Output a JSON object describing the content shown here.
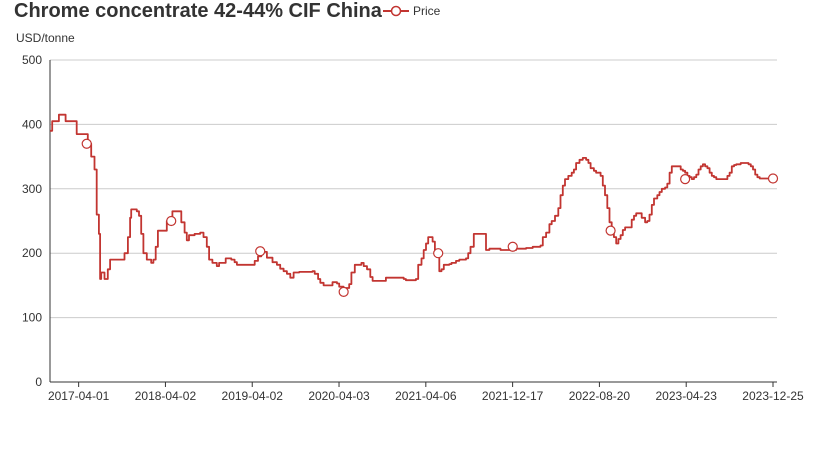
{
  "title": "Chrome concentrate 42-44% CIF China",
  "legend_label": "Price",
  "y_unit": "USD/tonne",
  "colors": {
    "series": "#c23531",
    "grid": "#cccccc",
    "axis": "#333333",
    "text": "#333333"
  },
  "chart_data": {
    "type": "line",
    "title": "Chrome concentrate 42-44% CIF China",
    "ylabel": "USD/tonne",
    "xlabel": "",
    "ylim": [
      0,
      500
    ],
    "y_ticks": [
      0,
      100,
      200,
      300,
      400,
      500
    ],
    "x_tick_labels": [
      "2017-04-01",
      "2018-04-02",
      "2019-04-02",
      "2020-04-03",
      "2021-04-06",
      "2021-12-17",
      "2022-08-20",
      "2023-04-23",
      "2023-12-25"
    ],
    "legend_position": "top",
    "grid": true,
    "series": [
      {
        "name": "Price",
        "step": true,
        "points": [
          [
            0,
            390
          ],
          [
            2,
            405
          ],
          [
            6,
            405
          ],
          [
            8,
            415
          ],
          [
            12,
            415
          ],
          [
            14,
            405
          ],
          [
            22,
            405
          ],
          [
            24,
            385
          ],
          [
            32,
            385
          ],
          [
            34,
            370
          ],
          [
            37,
            350
          ],
          [
            40,
            330
          ],
          [
            42,
            260
          ],
          [
            44,
            230
          ],
          [
            45,
            160
          ],
          [
            46,
            170
          ],
          [
            49,
            160
          ],
          [
            52,
            175
          ],
          [
            54,
            190
          ],
          [
            65,
            190
          ],
          [
            67,
            200
          ],
          [
            70,
            225
          ],
          [
            72,
            255
          ],
          [
            73,
            268
          ],
          [
            78,
            265
          ],
          [
            80,
            258
          ],
          [
            82,
            230
          ],
          [
            84,
            200
          ],
          [
            87,
            190
          ],
          [
            91,
            185
          ],
          [
            93,
            190
          ],
          [
            95,
            210
          ],
          [
            97,
            235
          ],
          [
            103,
            235
          ],
          [
            105,
            250
          ],
          [
            107,
            255
          ],
          [
            110,
            265
          ],
          [
            116,
            265
          ],
          [
            118,
            248
          ],
          [
            121,
            232
          ],
          [
            123,
            220
          ],
          [
            125,
            228
          ],
          [
            130,
            230
          ],
          [
            135,
            232
          ],
          [
            138,
            225
          ],
          [
            141,
            210
          ],
          [
            143,
            190
          ],
          [
            146,
            185
          ],
          [
            150,
            180
          ],
          [
            152,
            185
          ],
          [
            156,
            185
          ],
          [
            158,
            192
          ],
          [
            163,
            190
          ],
          [
            166,
            186
          ],
          [
            168,
            182
          ],
          [
            180,
            182
          ],
          [
            184,
            188
          ],
          [
            187,
            195
          ],
          [
            190,
            200
          ],
          [
            192,
            202
          ],
          [
            195,
            193
          ],
          [
            200,
            186
          ],
          [
            204,
            182
          ],
          [
            207,
            176
          ],
          [
            210,
            172
          ],
          [
            213,
            168
          ],
          [
            216,
            162
          ],
          [
            219,
            170
          ],
          [
            224,
            171
          ],
          [
            236,
            172
          ],
          [
            238,
            168
          ],
          [
            241,
            160
          ],
          [
            243,
            154
          ],
          [
            246,
            150
          ],
          [
            252,
            150
          ],
          [
            254,
            155
          ],
          [
            258,
            153
          ],
          [
            260,
            148
          ],
          [
            264,
            140
          ],
          [
            266,
            146
          ],
          [
            269,
            152
          ],
          [
            271,
            170
          ],
          [
            274,
            182
          ],
          [
            280,
            185
          ],
          [
            282,
            180
          ],
          [
            285,
            175
          ],
          [
            288,
            163
          ],
          [
            290,
            157
          ],
          [
            298,
            157
          ],
          [
            302,
            162
          ],
          [
            318,
            160
          ],
          [
            320,
            158
          ],
          [
            329,
            160
          ],
          [
            331,
            182
          ],
          [
            334,
            192
          ],
          [
            336,
            205
          ],
          [
            338,
            215
          ],
          [
            340,
            225
          ],
          [
            344,
            218
          ],
          [
            346,
            205
          ],
          [
            348,
            200
          ],
          [
            350,
            172
          ],
          [
            352,
            175
          ],
          [
            354,
            182
          ],
          [
            359,
            183
          ],
          [
            361,
            185
          ],
          [
            365,
            188
          ],
          [
            368,
            190
          ],
          [
            374,
            192
          ],
          [
            376,
            200
          ],
          [
            378,
            210
          ],
          [
            381,
            230
          ],
          [
            390,
            230
          ],
          [
            392,
            205
          ],
          [
            395,
            207
          ],
          [
            403,
            207
          ],
          [
            405,
            205
          ],
          [
            414,
            205
          ],
          [
            419,
            207
          ],
          [
            428,
            208
          ],
          [
            434,
            210
          ],
          [
            441,
            212
          ],
          [
            443,
            225
          ],
          [
            446,
            232
          ],
          [
            449,
            245
          ],
          [
            451,
            250
          ],
          [
            454,
            258
          ],
          [
            457,
            270
          ],
          [
            459,
            290
          ],
          [
            461,
            305
          ],
          [
            463,
            315
          ],
          [
            466,
            320
          ],
          [
            469,
            325
          ],
          [
            471,
            330
          ],
          [
            473,
            340
          ],
          [
            476,
            345
          ],
          [
            479,
            348
          ],
          [
            482,
            345
          ],
          [
            484,
            340
          ],
          [
            486,
            332
          ],
          [
            489,
            328
          ],
          [
            491,
            325
          ],
          [
            495,
            320
          ],
          [
            497,
            305
          ],
          [
            499,
            290
          ],
          [
            501,
            270
          ],
          [
            503,
            248
          ],
          [
            505,
            235
          ],
          [
            507,
            225
          ],
          [
            509,
            215
          ],
          [
            511,
            222
          ],
          [
            513,
            228
          ],
          [
            515,
            236
          ],
          [
            517,
            240
          ],
          [
            521,
            240
          ],
          [
            523,
            252
          ],
          [
            525,
            258
          ],
          [
            527,
            262
          ],
          [
            530,
            262
          ],
          [
            532,
            255
          ],
          [
            535,
            248
          ],
          [
            537,
            250
          ],
          [
            539,
            260
          ],
          [
            541,
            275
          ],
          [
            543,
            285
          ],
          [
            546,
            290
          ],
          [
            548,
            295
          ],
          [
            550,
            300
          ],
          [
            553,
            302
          ],
          [
            555,
            308
          ],
          [
            557,
            325
          ],
          [
            559,
            335
          ],
          [
            565,
            335
          ],
          [
            567,
            330
          ],
          [
            569,
            328
          ],
          [
            571,
            325
          ],
          [
            573,
            320
          ],
          [
            575,
            318
          ],
          [
            577,
            315
          ],
          [
            579,
            318
          ],
          [
            581,
            322
          ],
          [
            583,
            330
          ],
          [
            585,
            335
          ],
          [
            587,
            338
          ],
          [
            589,
            335
          ],
          [
            591,
            332
          ],
          [
            593,
            325
          ],
          [
            595,
            320
          ],
          [
            597,
            318
          ],
          [
            599,
            315
          ],
          [
            607,
            315
          ],
          [
            609,
            320
          ],
          [
            611,
            325
          ],
          [
            613,
            335
          ],
          [
            615,
            337
          ],
          [
            617,
            338
          ],
          [
            621,
            340
          ],
          [
            626,
            340
          ],
          [
            628,
            338
          ],
          [
            630,
            335
          ],
          [
            632,
            330
          ],
          [
            634,
            322
          ],
          [
            636,
            318
          ],
          [
            638,
            316
          ],
          [
            650,
            315
          ]
        ],
        "markers": [
          [
            33,
            370
          ],
          [
            109,
            250
          ],
          [
            189,
            203
          ],
          [
            264,
            140
          ],
          [
            349,
            200
          ],
          [
            416,
            210
          ],
          [
            504,
            235
          ],
          [
            571,
            315
          ],
          [
            650,
            316
          ]
        ]
      }
    ]
  }
}
